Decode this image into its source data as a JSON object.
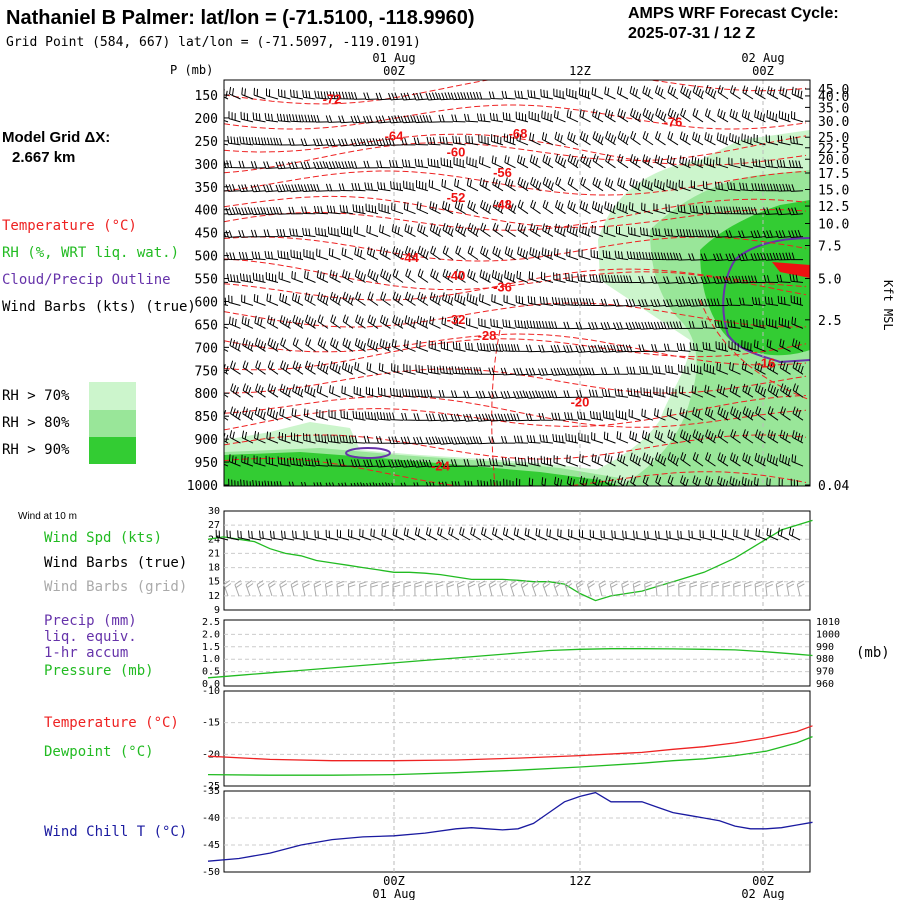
{
  "header": {
    "station_title": "Nathaniel B Palmer:  lat/lon = (-71.5100, -118.9960)",
    "grid_point": "Grid Point (584, 667) lat/lon = (-71.5097, -119.0191)",
    "cycle_title": "AMPS WRF Forecast Cycle:",
    "cycle_value": "2025-07-31 / 12  Z"
  },
  "legend": {
    "model_grid_label": "Model Grid ΔX:",
    "model_grid_value": "2.667 km",
    "temperature": "Temperature (°C)",
    "rh": "RH (%, WRT liq. wat.)",
    "cloud": "Cloud/Precip Outline",
    "wind": "Wind Barbs (kts) (true)",
    "rh70": "RH > 70%",
    "rh80": "RH > 80%",
    "rh90": "RH > 90%"
  },
  "colors": {
    "temperature": "#ee2222",
    "rh70": "#ccf5cc",
    "rh80": "#99e699",
    "rh90": "#33cc33",
    "cloud": "#6633aa",
    "dewpoint": "#22bb22",
    "windchill": "#1a1aa0",
    "grid_barbs": "#aaaaaa",
    "wind_spd": "#22bb22"
  },
  "time_axis": {
    "top_dates": [
      "01 Aug",
      "02 Aug"
    ],
    "ticks": [
      "00Z",
      "12Z",
      "00Z"
    ],
    "bottom_dates": [
      "01 Aug",
      "02 Aug"
    ]
  },
  "chart_data": [
    {
      "type": "heatmap",
      "name": "cross-section",
      "left_axis_label": "P (mb)",
      "right_axis_label": "Kft MSL",
      "pressure_ticks": [
        "150",
        "200",
        "250",
        "300",
        "350",
        "400",
        "450",
        "500",
        "550",
        "600",
        "650",
        "700",
        "750",
        "800",
        "850",
        "900",
        "950",
        "1000"
      ],
      "height_ticks": [
        "45.0",
        "40.0",
        "35.0",
        "30.0",
        "25.0",
        "22.5",
        "20.0",
        "17.5",
        "15.0",
        "12.5",
        "10.0",
        "7.5",
        "5.0",
        "2.5",
        "0.04"
      ],
      "temperature_labels": [
        {
          "text": "-72",
          "hour": -4,
          "p": 160
        },
        {
          "text": "-76",
          "hour": 18,
          "p": 210
        },
        {
          "text": "-64",
          "hour": 0,
          "p": 240
        },
        {
          "text": "-68",
          "hour": 8,
          "p": 235
        },
        {
          "text": "-60",
          "hour": 4,
          "p": 275
        },
        {
          "text": "-56",
          "hour": 7,
          "p": 320
        },
        {
          "text": "-52",
          "hour": 4,
          "p": 375
        },
        {
          "text": "-48",
          "hour": 7,
          "p": 390
        },
        {
          "text": "-44",
          "hour": 1,
          "p": 505
        },
        {
          "text": "-40",
          "hour": 4,
          "p": 545
        },
        {
          "text": "-36",
          "hour": 7,
          "p": 570
        },
        {
          "text": "-32",
          "hour": 4,
          "p": 640
        },
        {
          "text": "-28",
          "hour": 6,
          "p": 675
        },
        {
          "text": "-20",
          "hour": 12,
          "p": 820
        },
        {
          "text": "-16",
          "hour": 24,
          "p": 735
        },
        {
          "text": "-24",
          "hour": 3,
          "p": 960
        }
      ]
    },
    {
      "type": "line",
      "name": "surface-wind",
      "header_label": "Wind at 10 m",
      "labels": {
        "spd": "Wind Spd (kts)",
        "true": "Wind Barbs (true)",
        "grid": "Wind Barbs (grid)"
      },
      "y_ticks": [
        "30",
        "27",
        "24",
        "21",
        "18",
        "15",
        "12",
        "9"
      ],
      "ylim": [
        9,
        30
      ],
      "x": [
        -12,
        -11,
        -10,
        -9,
        -8,
        -7,
        -6,
        -5,
        -4,
        -3,
        -2,
        -1,
        0,
        1,
        2,
        3,
        4,
        5,
        6,
        7,
        8,
        9,
        10,
        11,
        12,
        13,
        14,
        15,
        16,
        17,
        18,
        19,
        20,
        21,
        22,
        23,
        24,
        25,
        26,
        27
      ],
      "values": [
        24,
        24.5,
        24,
        23.5,
        22,
        21,
        20.5,
        19.5,
        19,
        18.5,
        18,
        17.5,
        17,
        17,
        16.8,
        16.5,
        16,
        15.5,
        15.5,
        15.5,
        15.3,
        15,
        15,
        14.5,
        12.5,
        11,
        12,
        12.5,
        13,
        14,
        15,
        16,
        17,
        18.5,
        20,
        22,
        24,
        26,
        27,
        28
      ]
    },
    {
      "type": "line",
      "name": "pressure-precip",
      "labels": {
        "precip": "Precip (mm)",
        "liq": "liq. equiv.",
        "accum": "1-hr accum",
        "pressure": "Pressure (mb)"
      },
      "unit_label": "(mb)",
      "left_ticks": [
        "2.5",
        "2.0",
        "1.5",
        "1.0",
        "0.5",
        "0.0"
      ],
      "right_ticks": [
        "1010",
        "1000",
        "990",
        "980",
        "970",
        "960"
      ],
      "ylim": [
        960,
        1010
      ],
      "x": [
        -12,
        -10,
        -8,
        -6,
        -4,
        -2,
        0,
        2,
        4,
        6,
        8,
        10,
        12,
        14,
        16,
        18,
        20,
        22,
        24,
        26,
        27
      ],
      "values": [
        965,
        967,
        969,
        971,
        973,
        975,
        977,
        979,
        981,
        983,
        985,
        987,
        988,
        988.5,
        988.5,
        988.3,
        988,
        987.5,
        986,
        984,
        983
      ]
    },
    {
      "type": "line",
      "name": "temp-dewpoint",
      "labels": {
        "temp": "Temperature (°C)",
        "dew": "Dewpoint (°C)"
      },
      "y_ticks": [
        "-10",
        "-15",
        "-20",
        "-25"
      ],
      "ylim": [
        -25,
        -10
      ],
      "x": [
        -12,
        -8,
        -4,
        0,
        4,
        8,
        12,
        16,
        18,
        20,
        22,
        24,
        26,
        27
      ],
      "series": [
        {
          "name": "Temperature",
          "values": [
            -20.3,
            -20.8,
            -21,
            -21,
            -20.9,
            -20.6,
            -20.2,
            -19.7,
            -19.2,
            -18.8,
            -18.2,
            -17.4,
            -16.4,
            -15.5
          ]
        },
        {
          "name": "Dewpoint",
          "values": [
            -23.2,
            -23.3,
            -23.3,
            -23.2,
            -22.9,
            -22.5,
            -22,
            -21.4,
            -21,
            -20.7,
            -20.2,
            -19.5,
            -18.2,
            -17.2
          ]
        }
      ]
    },
    {
      "type": "line",
      "name": "wind-chill",
      "labels": {
        "wc": "Wind Chill T (°C)"
      },
      "y_ticks": [
        "-35",
        "-40",
        "-45",
        "-50"
      ],
      "ylim": [
        -50,
        -35
      ],
      "x": [
        -12,
        -10,
        -8,
        -6,
        -4,
        -2,
        0,
        2,
        4,
        5,
        6,
        7,
        8,
        9,
        10,
        11,
        12,
        13,
        14,
        15,
        16,
        17,
        18,
        19,
        20,
        21,
        22,
        23,
        24,
        25,
        26,
        27
      ],
      "values": [
        -48,
        -47.5,
        -46.5,
        -45,
        -44,
        -43.5,
        -43.3,
        -42.8,
        -42,
        -41.8,
        -42,
        -42.2,
        -42,
        -41,
        -39,
        -37,
        -36,
        -35.3,
        -37,
        -37,
        -37,
        -38,
        -39,
        -39.5,
        -40,
        -40.5,
        -41.5,
        -42,
        -42,
        -41.8,
        -41.3,
        -40.8
      ]
    }
  ]
}
